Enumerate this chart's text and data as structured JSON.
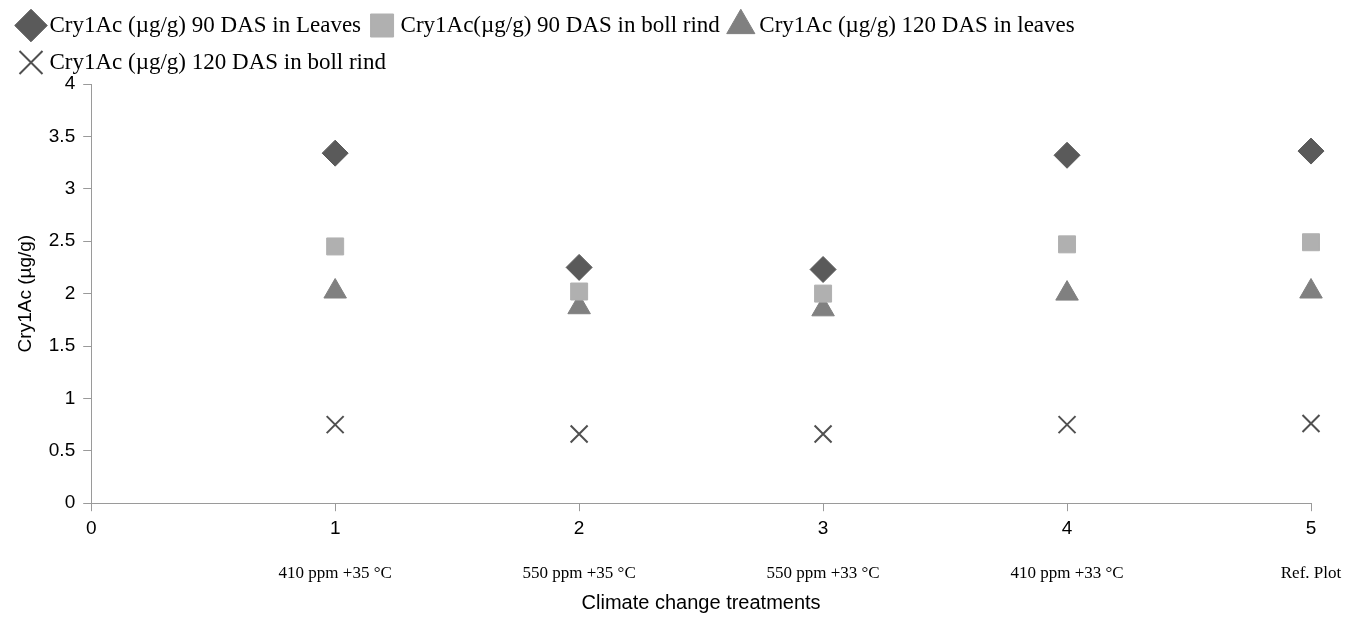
{
  "chart_data": {
    "type": "scatter",
    "xlabel": "Climate change treatments",
    "ylabel": "Cry1Ac (µg/g)",
    "x": [
      1,
      2,
      3,
      4,
      5
    ],
    "xlim": [
      0,
      5
    ],
    "xticks": [
      0,
      1,
      2,
      3,
      4,
      5
    ],
    "ylim": [
      0,
      4
    ],
    "yticks": [
      0,
      0.5,
      1,
      1.5,
      2,
      2.5,
      3,
      3.5,
      4
    ],
    "grid": false,
    "legend": "top left",
    "series": [
      {
        "name": "Cry1Ac (µg/g) 90 DAS in Leaves",
        "color": "#5a5a5a",
        "marker": "diamond",
        "values": [
          3.34,
          2.25,
          2.23,
          3.32,
          3.36
        ]
      },
      {
        "name": "Cry1Ac(µg/g) 90 DAS in boll rind",
        "color": "#b0b0b0",
        "marker": "square",
        "values": [
          2.45,
          2.02,
          2.0,
          2.47,
          2.49
        ]
      },
      {
        "name": "Cry1Ac (µg/g) 120 DAS in leaves",
        "color": "#808080",
        "marker": "triangle",
        "values": [
          2.02,
          1.87,
          1.85,
          2.0,
          2.02
        ]
      },
      {
        "name": "Cry1Ac (µg/g) 120 DAS in boll rind",
        "color": "#505050",
        "marker": "cross",
        "values": [
          0.75,
          0.66,
          0.66,
          0.75,
          0.76
        ]
      }
    ],
    "annotations": [
      "410 ppm +35 °C",
      "550 ppm +35 °C",
      "550 ppm +33 °C",
      "410 ppm +33 °C",
      "Ref. Plot"
    ]
  }
}
